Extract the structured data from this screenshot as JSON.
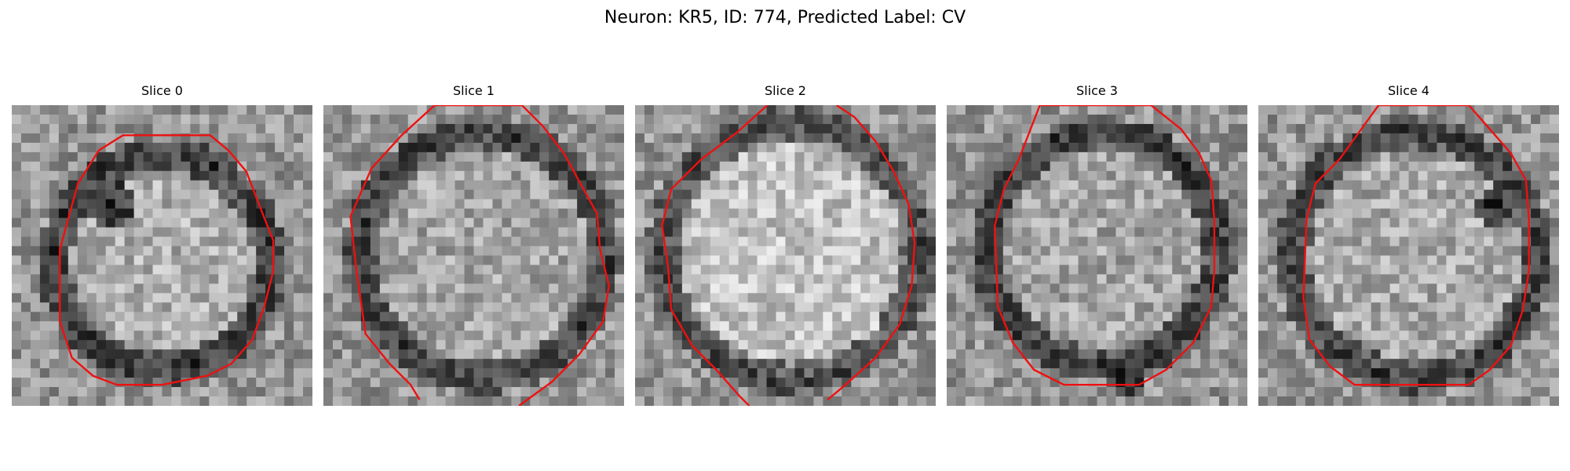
{
  "figure": {
    "title": "Neuron: KR5, ID: 774, Predicted Label: CV"
  },
  "panels": [
    {
      "title": "Slice 0",
      "image": "grayscale-slice-with-red-contour",
      "contour_color": "#ee1111"
    },
    {
      "title": "Slice 1",
      "image": "grayscale-slice-with-red-contour",
      "contour_color": "#ee1111"
    },
    {
      "title": "Slice 2",
      "image": "grayscale-slice-with-red-contour",
      "contour_color": "#ee1111"
    },
    {
      "title": "Slice 3",
      "image": "grayscale-slice-with-red-contour",
      "contour_color": "#ee1111"
    },
    {
      "title": "Slice 4",
      "image": "grayscale-slice-with-red-contour",
      "contour_color": "#ee1111"
    }
  ]
}
